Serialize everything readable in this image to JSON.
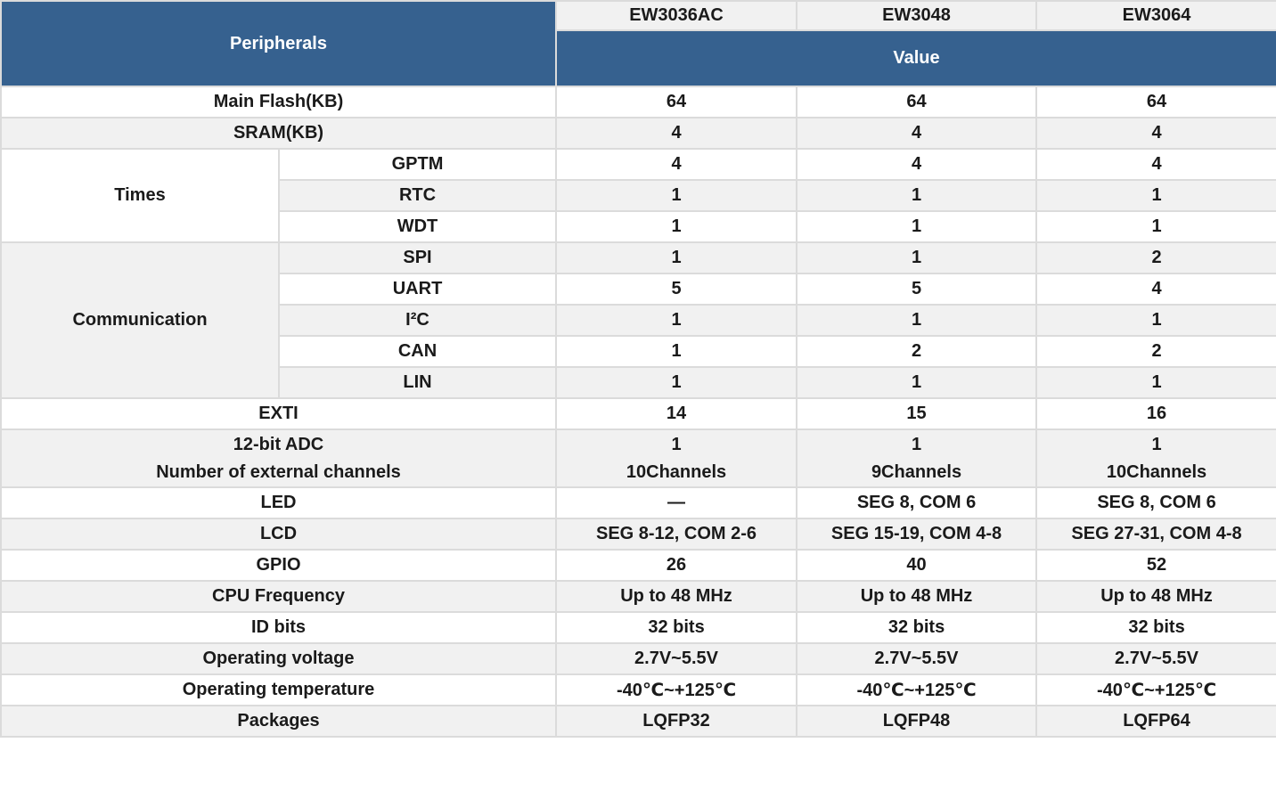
{
  "header": {
    "peripherals_label": "Peripherals",
    "models": [
      "EW3036AC",
      "EW3048",
      "EW3064"
    ],
    "value_label": "Value"
  },
  "groups": {
    "times": {
      "label": "Times"
    },
    "communication": {
      "label": "Communication"
    }
  },
  "rows": [
    {
      "label": "Main Flash(KB)",
      "values": [
        "64",
        "64",
        "64"
      ]
    },
    {
      "label": "SRAM(KB)",
      "values": [
        "4",
        "4",
        "4"
      ]
    },
    {
      "label": "GPTM",
      "values": [
        "4",
        "4",
        "4"
      ]
    },
    {
      "label": "RTC",
      "values": [
        "1",
        "1",
        "1"
      ]
    },
    {
      "label": "WDT",
      "values": [
        "1",
        "1",
        "1"
      ]
    },
    {
      "label": "SPI",
      "values": [
        "1",
        "1",
        "2"
      ]
    },
    {
      "label": "UART",
      "values": [
        "5",
        "5",
        "4"
      ]
    },
    {
      "label": "I²C",
      "values": [
        "1",
        "1",
        "1"
      ]
    },
    {
      "label": "CAN",
      "values": [
        "1",
        "2",
        "2"
      ]
    },
    {
      "label": "LIN",
      "values": [
        "1",
        "1",
        "1"
      ]
    },
    {
      "label": "EXTI",
      "values": [
        "14",
        "15",
        "16"
      ]
    },
    {
      "label_top": "12-bit ADC",
      "label_bottom": "Number of external channels",
      "top": [
        "1",
        "1",
        "1"
      ],
      "bottom": [
        "10Channels",
        "9Channels",
        "10Channels"
      ]
    },
    {
      "label": "LED",
      "values": [
        "—",
        "SEG 8, COM 6",
        "SEG 8, COM 6"
      ]
    },
    {
      "label": "LCD",
      "values": [
        "SEG 8-12, COM 2-6",
        "SEG 15-19, COM 4-8",
        "SEG 27-31, COM 4-8"
      ]
    },
    {
      "label": "GPIO",
      "values": [
        "26",
        "40",
        "52"
      ]
    },
    {
      "label": "CPU Frequency",
      "values": [
        "Up to 48 MHz",
        "Up to 48 MHz",
        "Up to 48 MHz"
      ]
    },
    {
      "label": "ID bits",
      "values": [
        "32 bits",
        "32 bits",
        "32 bits"
      ]
    },
    {
      "label": "Operating voltage",
      "values": [
        "2.7V~5.5V",
        "2.7V~5.5V",
        "2.7V~5.5V"
      ]
    },
    {
      "label": "Operating temperature",
      "values": [
        "-40℃~+125℃",
        "-40℃~+125℃",
        "-40℃~+125℃"
      ]
    },
    {
      "label": "Packages",
      "values": [
        "LQFP32",
        "LQFP48",
        "LQFP64"
      ]
    }
  ],
  "colors": {
    "header_blue": "#36618F",
    "stripe_gray": "#F1F1F1",
    "border_gray": "#DBDBDB",
    "text_dark": "#1A1A1A",
    "header_text_white": "#FFFFFF"
  }
}
